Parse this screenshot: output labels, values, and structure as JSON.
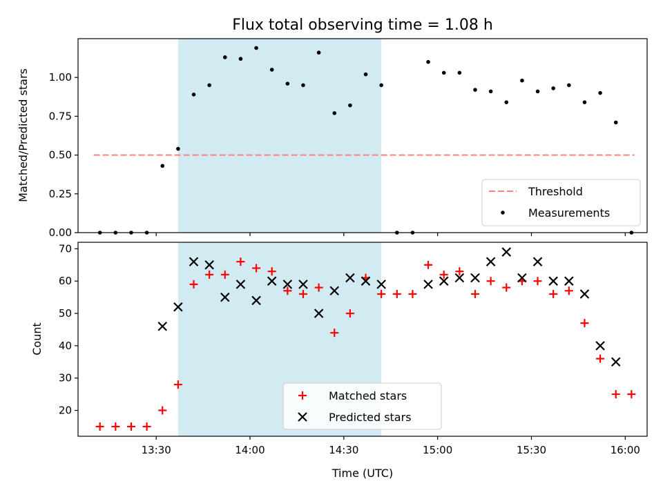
{
  "chart_data": [
    {
      "type": "scatter",
      "title": "Flux total observing time = 1.08 h",
      "xlabel": "",
      "ylabel": "Matched/Predicted stars",
      "ylim": [
        0,
        1.25
      ],
      "yticks": [
        "0.00",
        "0.25",
        "0.50",
        "0.75",
        "1.00"
      ],
      "shaded_region": {
        "x_start": "13:37",
        "x_end": "14:42",
        "color": "#add8e6"
      },
      "legend_position": "lower-right",
      "threshold": {
        "name": "Threshold",
        "value": 0.5,
        "x_start": "13:10",
        "x_end": "16:03",
        "color": "#ff7f7f",
        "style": "dashed"
      },
      "series": [
        {
          "name": "Measurements",
          "color": "#000000",
          "marker": "dot",
          "x": [
            "13:12",
            "13:17",
            "13:22",
            "13:27",
            "13:32",
            "13:37",
            "13:42",
            "13:47",
            "13:52",
            "13:57",
            "14:02",
            "14:07",
            "14:12",
            "14:17",
            "14:22",
            "14:27",
            "14:32",
            "14:37",
            "14:42",
            "14:47",
            "14:52",
            "14:57",
            "15:02",
            "15:07",
            "15:12",
            "15:17",
            "15:22",
            "15:27",
            "15:32",
            "15:37",
            "15:42",
            "15:47",
            "15:52",
            "15:57",
            "16:02"
          ],
          "y": [
            0,
            0,
            0,
            0,
            0.43,
            0.54,
            0.89,
            0.95,
            1.13,
            1.12,
            1.19,
            1.05,
            0.96,
            0.95,
            1.16,
            0.77,
            0.82,
            1.02,
            0.95,
            0,
            0,
            1.1,
            1.03,
            1.03,
            0.92,
            0.91,
            0.84,
            0.98,
            0.91,
            0.93,
            0.95,
            0.84,
            0.9,
            0.71,
            0
          ]
        }
      ]
    },
    {
      "type": "scatter",
      "xlabel": "Time (UTC)",
      "ylabel": "Count",
      "ylim": [
        12,
        72
      ],
      "yticks": [
        "20",
        "30",
        "40",
        "50",
        "60",
        "70"
      ],
      "xticks": [
        "13:30",
        "14:00",
        "14:30",
        "15:00",
        "15:30",
        "16:00"
      ],
      "shaded_region": {
        "x_start": "13:37",
        "x_end": "14:42",
        "color": "#add8e6"
      },
      "legend_position": "lower-center",
      "series": [
        {
          "name": "Matched stars",
          "color": "#ff0000",
          "marker": "plus",
          "x": [
            "13:12",
            "13:17",
            "13:22",
            "13:27",
            "13:32",
            "13:37",
            "13:42",
            "13:47",
            "13:52",
            "13:57",
            "14:02",
            "14:07",
            "14:12",
            "14:17",
            "14:22",
            "14:27",
            "14:32",
            "14:37",
            "14:42",
            "14:47",
            "14:52",
            "14:57",
            "15:02",
            "15:07",
            "15:12",
            "15:17",
            "15:22",
            "15:27",
            "15:32",
            "15:37",
            "15:42",
            "15:47",
            "15:52",
            "15:57",
            "16:02"
          ],
          "y": [
            15,
            15,
            15,
            15,
            20,
            28,
            59,
            62,
            62,
            66,
            64,
            63,
            57,
            56,
            58,
            44,
            50,
            61,
            56,
            56,
            56,
            65,
            62,
            63,
            56,
            60,
            58,
            60,
            60,
            56,
            57,
            47,
            36,
            25,
            25
          ]
        },
        {
          "name": "Predicted stars",
          "color": "#000000",
          "marker": "x",
          "x": [
            "13:32",
            "13:37",
            "13:42",
            "13:47",
            "13:52",
            "13:57",
            "14:02",
            "14:07",
            "14:12",
            "14:17",
            "14:22",
            "14:27",
            "14:32",
            "14:37",
            "14:42",
            "14:57",
            "15:02",
            "15:07",
            "15:12",
            "15:17",
            "15:22",
            "15:27",
            "15:32",
            "15:37",
            "15:42",
            "15:47",
            "15:52",
            "15:57"
          ],
          "y": [
            46,
            52,
            66,
            65,
            55,
            59,
            54,
            60,
            59,
            59,
            50,
            57,
            61,
            60,
            59,
            59,
            60,
            61,
            61,
            66,
            69,
            61,
            66,
            60,
            60,
            56,
            40,
            35
          ]
        }
      ]
    }
  ]
}
